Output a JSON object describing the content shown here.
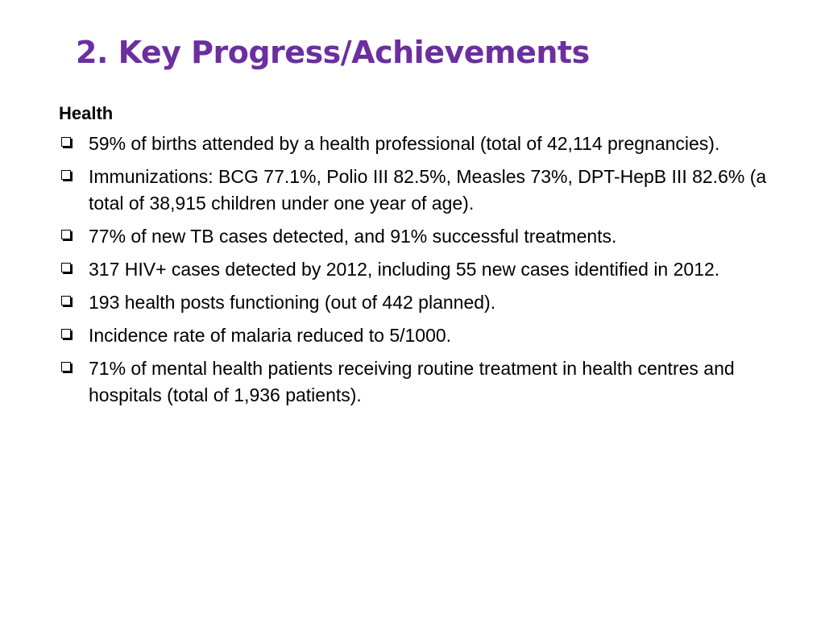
{
  "slide": {
    "title": "2. Key Progress/Achievements",
    "title_color": "#6b2fa0",
    "section_heading": "Health",
    "bullet_icon": "hollow-square-bullet",
    "bullets": [
      "59% of births attended by a health professional (total of 42,114 pregnancies).",
      "Immunizations: BCG 77.1%, Polio III 82.5%, Measles 73%, DPT-HepB III 82.6% (a total of 38,915 children under one year of age).",
      "77% of new TB cases detected, and 91% successful treatments.",
      "317 HIV+ cases detected by 2012, including 55 new cases identified in 2012.",
      "193 health posts functioning (out of 442 planned).",
      "Incidence rate of malaria reduced to 5/1000.",
      "71% of mental health patients receiving routine treatment in health centres and hospitals (total of 1,936 patients)."
    ]
  }
}
